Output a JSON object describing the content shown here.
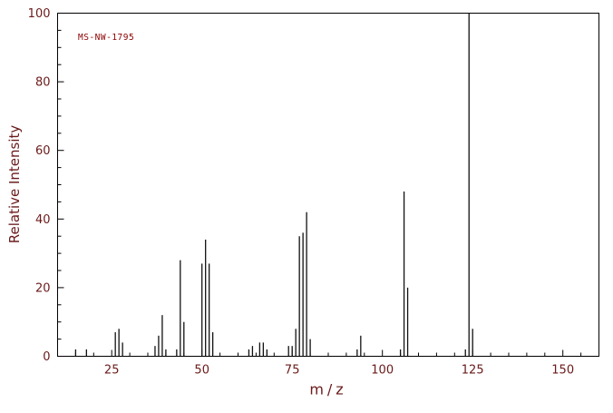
{
  "annotation": "MS-NW-1795",
  "chart_data": {
    "type": "bar",
    "subtype": "mass-spectrum-stick-plot",
    "title": "",
    "xlabel": "m/z",
    "ylabel": "Relative Intensity",
    "xlim": [
      10,
      160
    ],
    "ylim": [
      0,
      100
    ],
    "x_ticks": [
      25,
      50,
      75,
      100,
      125,
      150
    ],
    "x_minor_step": 5,
    "y_ticks": [
      0,
      20,
      40,
      60,
      80,
      100
    ],
    "y_minor_step": 5,
    "grid": "off",
    "legend": "none",
    "colors": {
      "frame": "#000000",
      "peak": "#111111",
      "tick_text": "#6b1a1a",
      "axis_text": "#6b1a1a",
      "annotation_text": "#8b0000"
    },
    "peaks": [
      [
        15,
        2
      ],
      [
        18,
        2
      ],
      [
        26,
        7
      ],
      [
        27,
        8
      ],
      [
        28,
        4
      ],
      [
        37,
        3
      ],
      [
        38,
        6
      ],
      [
        39,
        12
      ],
      [
        40,
        2
      ],
      [
        43,
        2
      ],
      [
        44,
        28
      ],
      [
        45,
        10
      ],
      [
        50,
        27
      ],
      [
        51,
        34
      ],
      [
        52,
        27
      ],
      [
        53,
        7
      ],
      [
        63,
        2
      ],
      [
        64,
        3
      ],
      [
        66,
        4
      ],
      [
        67,
        4
      ],
      [
        68,
        2
      ],
      [
        74,
        3
      ],
      [
        75,
        3
      ],
      [
        76,
        8
      ],
      [
        77,
        35
      ],
      [
        78,
        36
      ],
      [
        79,
        42
      ],
      [
        80,
        5
      ],
      [
        93,
        2
      ],
      [
        94,
        6
      ],
      [
        105,
        2
      ],
      [
        106,
        48
      ],
      [
        107,
        20
      ],
      [
        123,
        2
      ],
      [
        124,
        100
      ],
      [
        125,
        8
      ]
    ]
  }
}
